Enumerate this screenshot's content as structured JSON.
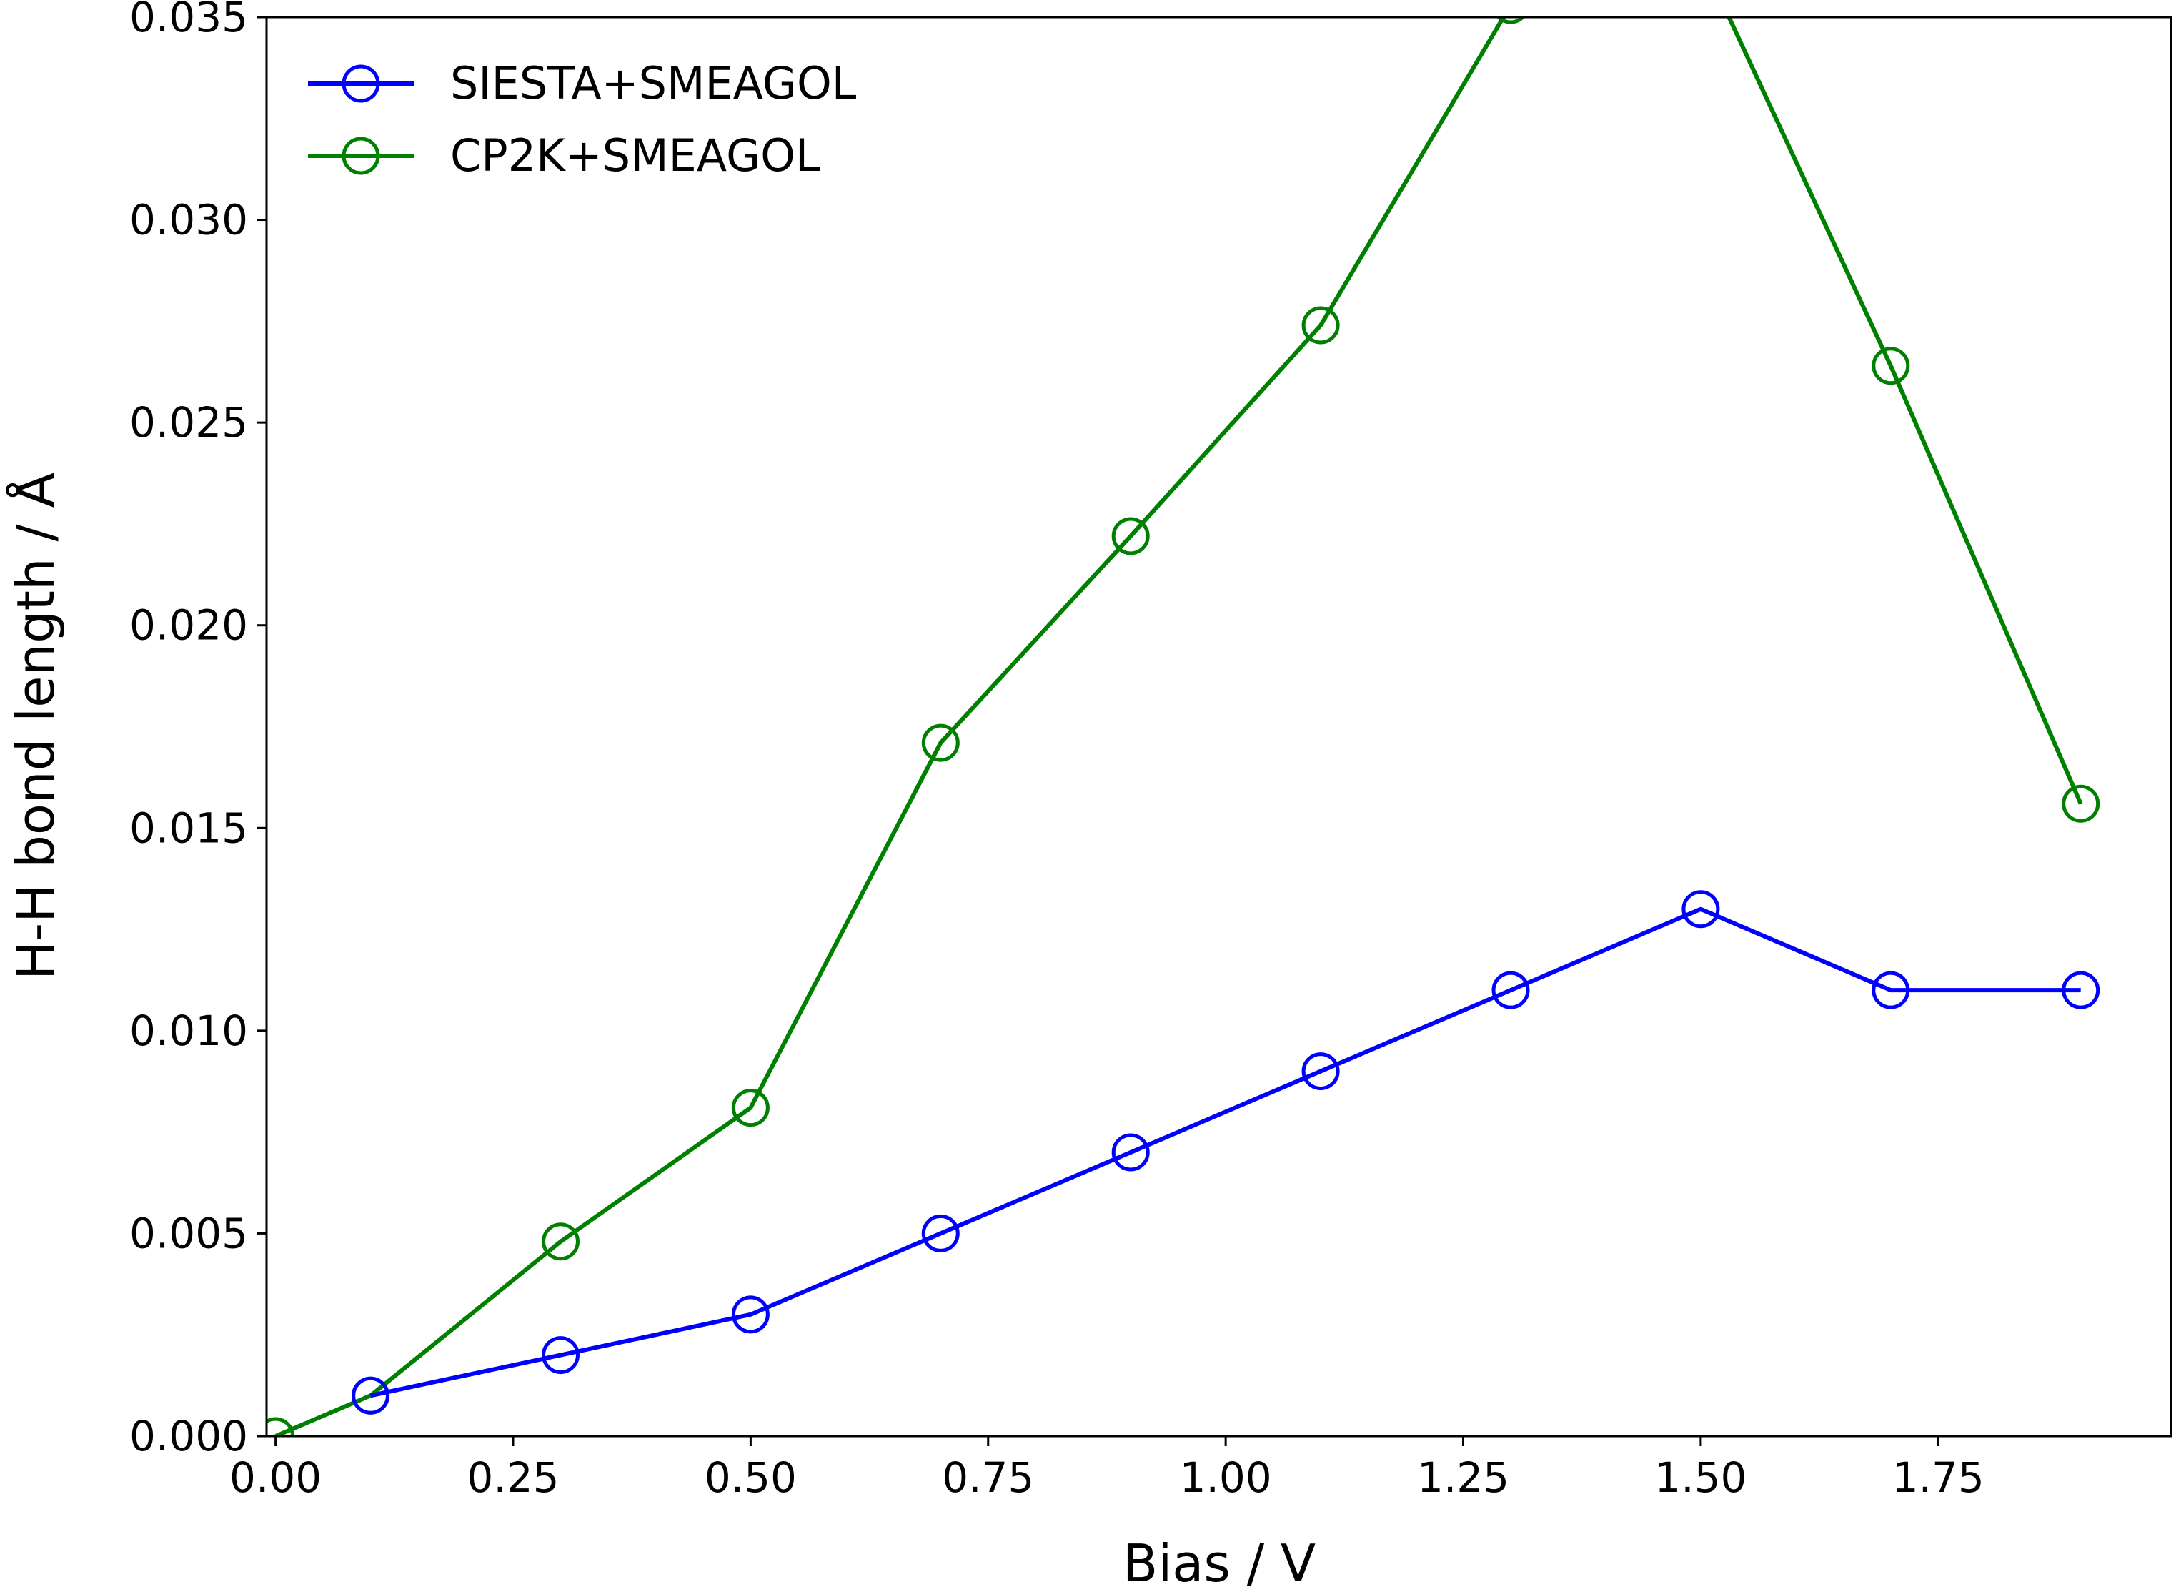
{
  "chart_data": {
    "type": "line",
    "xlabel": "Bias / V",
    "ylabel": "H-H bond length / Å",
    "xlim": [
      -0.0095,
      1.995
    ],
    "ylim": [
      0.0,
      0.035
    ],
    "x_ticks": [
      0.0,
      0.25,
      0.5,
      0.75,
      1.0,
      1.25,
      1.5,
      1.75
    ],
    "x_tick_labels": [
      "0.00",
      "0.25",
      "0.50",
      "0.75",
      "1.00",
      "1.25",
      "1.50",
      "1.75"
    ],
    "y_ticks": [
      0.0,
      0.005,
      0.01,
      0.015,
      0.02,
      0.025,
      0.03,
      0.035
    ],
    "y_tick_labels": [
      "0.000",
      "0.005",
      "0.010",
      "0.015",
      "0.020",
      "0.025",
      "0.030",
      "0.035"
    ],
    "grid": false,
    "legend_position": "upper-left",
    "series": [
      {
        "name": "SIESTA+SMEAGOL",
        "color": "#0000ff",
        "marker": "open-circle",
        "x": [
          0.1,
          0.3,
          0.5,
          0.7,
          0.9,
          1.1,
          1.3,
          1.5,
          1.7,
          1.9
        ],
        "y": [
          0.001,
          0.002,
          0.003,
          0.005,
          0.007,
          0.009,
          0.011,
          0.013,
          0.011,
          0.011
        ]
      },
      {
        "name": "CP2K+SMEAGOL",
        "color": "#008000",
        "marker": "open-circle",
        "x": [
          0.0,
          0.1,
          0.3,
          0.5,
          0.7,
          0.9,
          1.1,
          1.3,
          1.5,
          1.7,
          1.9
        ],
        "y": [
          0.0,
          0.001,
          0.0048,
          0.0081,
          0.0171,
          0.0222,
          0.0274,
          0.0353,
          0.0365,
          0.0264,
          0.0156
        ]
      }
    ]
  }
}
